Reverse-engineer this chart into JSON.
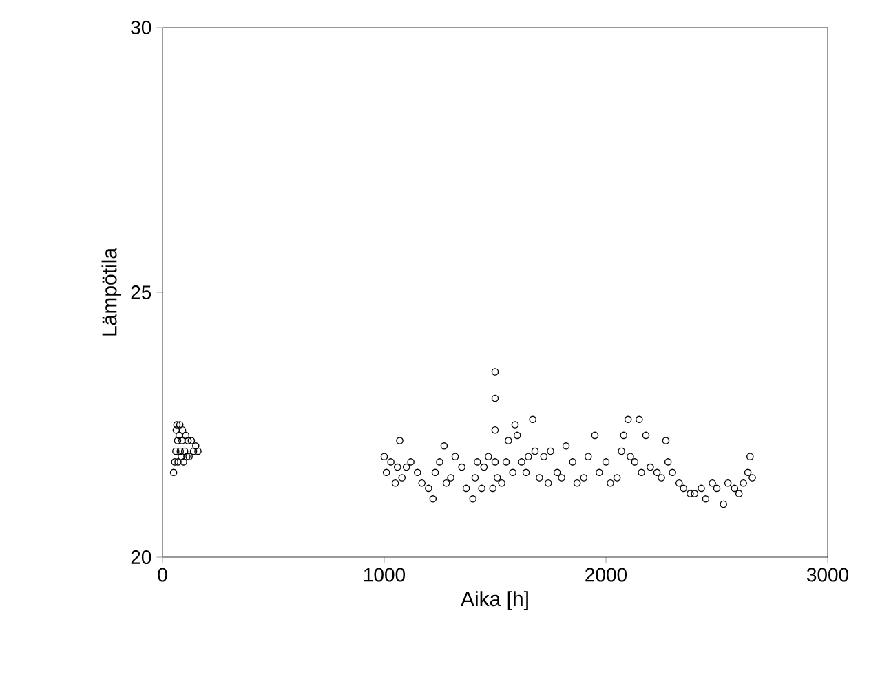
{
  "chart_data": {
    "type": "scatter",
    "xlabel": "Aika [h]",
    "ylabel": "Lämpötila",
    "xlim": [
      0,
      3000
    ],
    "ylim": [
      20,
      30
    ],
    "xticks": [
      0,
      1000,
      2000,
      3000
    ],
    "yticks": [
      20,
      25,
      30
    ],
    "marker": "circle",
    "color": "#000000",
    "x": [
      50,
      55,
      60,
      62,
      65,
      68,
      70,
      75,
      78,
      80,
      85,
      88,
      90,
      95,
      100,
      105,
      110,
      115,
      120,
      130,
      140,
      150,
      160,
      1000,
      1010,
      1030,
      1050,
      1060,
      1070,
      1080,
      1100,
      1120,
      1150,
      1170,
      1200,
      1220,
      1230,
      1250,
      1270,
      1280,
      1300,
      1320,
      1350,
      1370,
      1400,
      1410,
      1420,
      1440,
      1450,
      1470,
      1490,
      1500,
      1500,
      1500,
      1500,
      1510,
      1530,
      1550,
      1560,
      1580,
      1590,
      1600,
      1620,
      1640,
      1650,
      1670,
      1680,
      1700,
      1720,
      1740,
      1750,
      1780,
      1800,
      1820,
      1850,
      1870,
      1900,
      1920,
      1950,
      1970,
      2000,
      2020,
      2050,
      2070,
      2080,
      2100,
      2110,
      2130,
      2150,
      2160,
      2180,
      2200,
      2230,
      2250,
      2270,
      2280,
      2300,
      2330,
      2350,
      2380,
      2400,
      2430,
      2450,
      2480,
      2500,
      2530,
      2550,
      2580,
      2600,
      2620,
      2640,
      2650,
      2660
    ],
    "values": [
      21.6,
      21.8,
      22.0,
      22.4,
      22.5,
      22.2,
      21.8,
      22.3,
      22.5,
      22.0,
      21.9,
      22.2,
      22.4,
      21.8,
      22.0,
      22.3,
      21.9,
      22.2,
      21.9,
      22.2,
      22.0,
      22.1,
      22.0,
      21.9,
      21.6,
      21.8,
      21.4,
      21.7,
      22.2,
      21.5,
      21.7,
      21.8,
      21.6,
      21.4,
      21.3,
      21.1,
      21.6,
      21.8,
      22.1,
      21.4,
      21.5,
      21.9,
      21.7,
      21.3,
      21.1,
      21.5,
      21.8,
      21.3,
      21.7,
      21.9,
      21.3,
      23.5,
      23.0,
      22.4,
      21.8,
      21.5,
      21.4,
      21.8,
      22.2,
      21.6,
      22.5,
      22.3,
      21.8,
      21.6,
      21.9,
      22.6,
      22.0,
      21.5,
      21.9,
      21.4,
      22.0,
      21.6,
      21.5,
      22.1,
      21.8,
      21.4,
      21.5,
      21.9,
      22.3,
      21.6,
      21.8,
      21.4,
      21.5,
      22.0,
      22.3,
      22.6,
      21.9,
      21.8,
      22.6,
      21.6,
      22.3,
      21.7,
      21.6,
      21.5,
      22.2,
      21.8,
      21.6,
      21.4,
      21.3,
      21.2,
      21.2,
      21.3,
      21.1,
      21.4,
      21.3,
      21.0,
      21.4,
      21.3,
      21.2,
      21.4,
      21.6,
      21.9,
      21.5
    ]
  }
}
